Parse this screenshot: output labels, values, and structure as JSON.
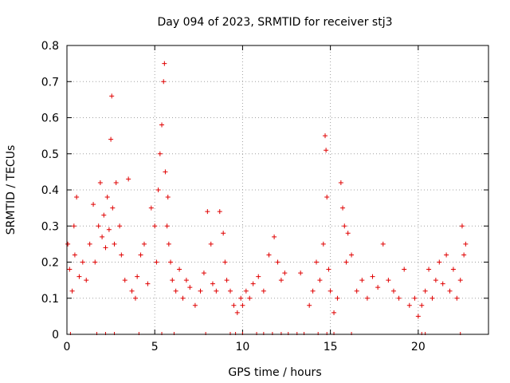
{
  "chart_data": {
    "type": "scatter",
    "title": "Day 094 of 2023, SRMTID for receiver stj3",
    "xlabel": "GPS time / hours",
    "ylabel": "SRMTID / TECUs",
    "xlim": [
      0,
      24
    ],
    "ylim": [
      0,
      0.8
    ],
    "x_ticks": [
      0,
      5,
      10,
      15,
      20
    ],
    "y_ticks": [
      0,
      0.1,
      0.2,
      0.3,
      0.4,
      0.5,
      0.6,
      0.7,
      0.8
    ],
    "x_tick_labels": [
      "0",
      "5",
      "10",
      "15",
      "20"
    ],
    "y_tick_labels": [
      "0",
      "0.1",
      "0.2",
      "0.3",
      "0.4",
      "0.5",
      "0.6",
      "0.7",
      "0.8"
    ],
    "grid": true,
    "marker": "+",
    "marker_color": "#e00000",
    "series": [
      {
        "name": "SRMTID",
        "x": [
          0.05,
          0.15,
          0.3,
          0.4,
          0.45,
          0.55,
          0.7,
          0.9,
          1.1,
          1.3,
          1.5,
          1.6,
          1.8,
          1.9,
          2.0,
          2.1,
          2.2,
          2.3,
          2.4,
          2.5,
          2.55,
          2.6,
          2.7,
          2.8,
          3.0,
          3.1,
          3.3,
          3.5,
          3.7,
          3.9,
          4.0,
          4.2,
          4.4,
          4.6,
          4.8,
          5.0,
          5.1,
          5.2,
          5.3,
          5.4,
          5.5,
          5.55,
          5.6,
          5.7,
          5.75,
          5.8,
          5.9,
          6.0,
          6.2,
          6.4,
          6.6,
          6.8,
          7.0,
          7.3,
          7.6,
          7.8,
          8.0,
          8.2,
          8.3,
          8.5,
          8.7,
          8.9,
          9.0,
          9.1,
          9.3,
          9.5,
          9.7,
          9.9,
          10.0,
          10.2,
          10.4,
          10.6,
          10.9,
          11.2,
          11.5,
          11.8,
          12.0,
          12.2,
          12.4,
          13.3,
          13.8,
          14.0,
          14.2,
          14.4,
          14.6,
          14.7,
          14.75,
          14.8,
          14.9,
          15.0,
          15.2,
          15.4,
          15.6,
          15.7,
          15.8,
          15.9,
          16.0,
          16.2,
          16.5,
          16.8,
          17.1,
          17.4,
          17.7,
          18.0,
          18.3,
          18.6,
          18.9,
          19.2,
          19.5,
          19.8,
          20.0,
          20.2,
          20.4,
          20.6,
          20.8,
          21.0,
          21.2,
          21.4,
          21.6,
          21.8,
          22.0,
          22.2,
          22.4,
          22.5,
          22.6,
          22.7
        ],
        "y": [
          0.25,
          0.18,
          0.12,
          0.3,
          0.22,
          0.38,
          0.16,
          0.2,
          0.15,
          0.25,
          0.36,
          0.2,
          0.3,
          0.42,
          0.27,
          0.33,
          0.24,
          0.38,
          0.29,
          0.54,
          0.66,
          0.35,
          0.25,
          0.42,
          0.3,
          0.22,
          0.15,
          0.43,
          0.12,
          0.1,
          0.16,
          0.22,
          0.25,
          0.14,
          0.35,
          0.3,
          0.2,
          0.4,
          0.5,
          0.58,
          0.7,
          0.75,
          0.45,
          0.3,
          0.38,
          0.25,
          0.2,
          0.15,
          0.12,
          0.18,
          0.1,
          0.15,
          0.13,
          0.08,
          0.12,
          0.17,
          0.34,
          0.25,
          0.14,
          0.12,
          0.34,
          0.28,
          0.2,
          0.15,
          0.12,
          0.08,
          0.06,
          0.1,
          0.08,
          0.12,
          0.1,
          0.14,
          0.16,
          0.12,
          0.22,
          0.27,
          0.2,
          0.15,
          0.17,
          0.17,
          0.08,
          0.12,
          0.2,
          0.15,
          0.25,
          0.55,
          0.51,
          0.38,
          0.18,
          0.12,
          0.06,
          0.1,
          0.42,
          0.35,
          0.3,
          0.2,
          0.28,
          0.22,
          0.12,
          0.15,
          0.1,
          0.16,
          0.13,
          0.25,
          0.15,
          0.12,
          0.1,
          0.18,
          0.08,
          0.1,
          0.05,
          0.08,
          0.12,
          0.18,
          0.1,
          0.15,
          0.2,
          0.14,
          0.22,
          0.12,
          0.18,
          0.1,
          0.15,
          0.3,
          0.22,
          0.25
        ]
      }
    ],
    "baseline_markers_x": [
      0.2,
      1.7,
      2.2,
      2.7,
      4.1,
      5.4,
      6.1,
      7.9,
      9.3,
      9.6,
      10.0,
      10.8,
      11.2,
      11.7,
      12.2,
      12.6,
      13.1,
      13.5,
      14.3,
      14.8,
      15.2,
      16.2,
      20.2,
      20.4,
      22.4
    ]
  }
}
